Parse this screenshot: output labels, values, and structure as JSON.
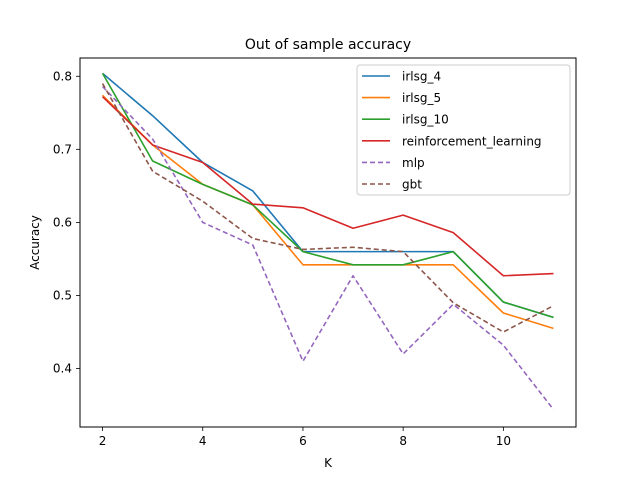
{
  "chart_data": {
    "type": "line",
    "title": "Out of sample accuracy",
    "xlabel": "K",
    "ylabel": "Accuracy",
    "x": [
      2,
      3,
      4,
      5,
      6,
      7,
      8,
      9,
      10,
      11
    ],
    "xlim": [
      1.55,
      11.45
    ],
    "ylim": [
      0.32,
      0.825
    ],
    "xticks": [
      2,
      4,
      6,
      8,
      10
    ],
    "xtick_labels": [
      "2",
      "4",
      "6",
      "8",
      "10"
    ],
    "yticks": [
      0.4,
      0.5,
      0.6,
      0.7,
      0.8
    ],
    "ytick_labels": [
      "0.4",
      "0.5",
      "0.6",
      "0.7",
      "0.8"
    ],
    "grid": false,
    "legend_position": "top-right",
    "series": [
      {
        "name": "irlsg_4",
        "color": "#1f77b4",
        "style": "solid",
        "values": [
          0.804,
          0.746,
          0.682,
          0.643,
          0.56,
          0.56,
          0.56,
          0.56,
          0.491,
          0.47
        ]
      },
      {
        "name": "irlsg_5",
        "color": "#ff7f0e",
        "style": "solid",
        "values": [
          0.774,
          0.706,
          0.652,
          0.624,
          0.542,
          0.542,
          0.542,
          0.542,
          0.476,
          0.455
        ]
      },
      {
        "name": "irlsg_10",
        "color": "#2ca02c",
        "style": "solid",
        "values": [
          0.804,
          0.684,
          0.652,
          0.624,
          0.56,
          0.542,
          0.542,
          0.56,
          0.491,
          0.47
        ]
      },
      {
        "name": "reinforcement_learning",
        "color": "#d62728",
        "style": "solid",
        "values": [
          0.772,
          0.706,
          0.682,
          0.625,
          0.62,
          0.592,
          0.61,
          0.586,
          0.527,
          0.53
        ]
      },
      {
        "name": "mlp",
        "color": "#9467bd",
        "style": "dashed",
        "values": [
          0.786,
          0.714,
          0.6,
          0.569,
          0.41,
          0.527,
          0.42,
          0.488,
          0.432,
          0.344
        ]
      },
      {
        "name": "gbt",
        "color": "#8c564b",
        "style": "dashed",
        "values": [
          0.79,
          0.67,
          0.629,
          0.578,
          0.563,
          0.566,
          0.56,
          0.49,
          0.45,
          0.486
        ]
      }
    ]
  }
}
